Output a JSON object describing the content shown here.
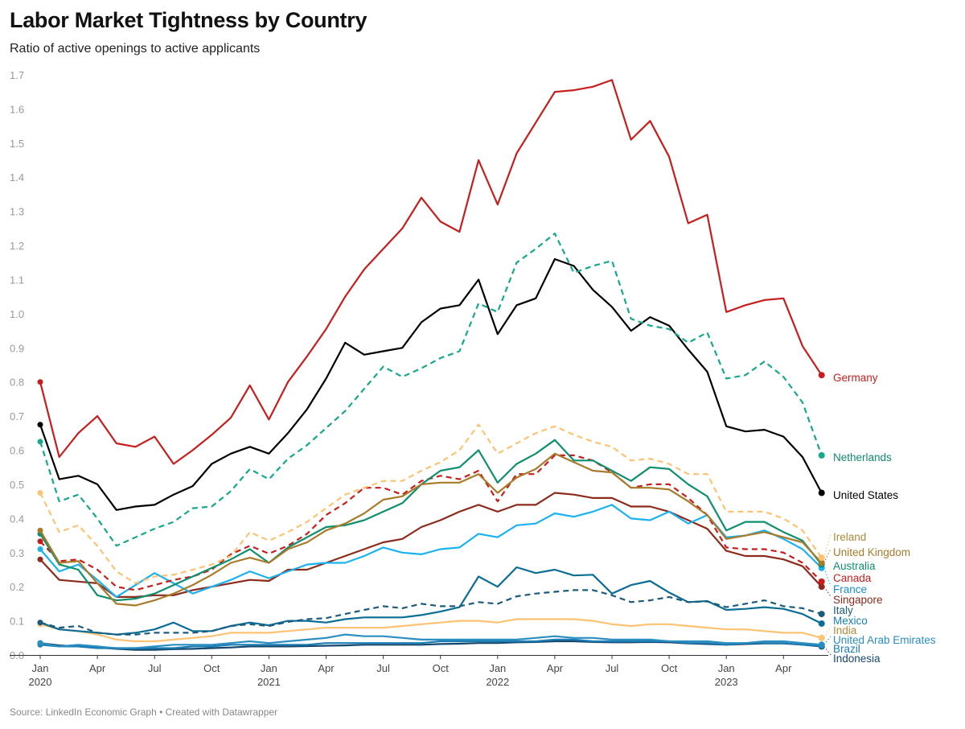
{
  "title": "Labor Market Tightness by Country",
  "subtitle": "Ratio of active openings to active applicants",
  "source": "Source: LinkedIn Economic Graph • Created with Datawrapper",
  "chart_data": {
    "type": "line",
    "title": "Labor Market Tightness by Country",
    "subtitle": "Ratio of active openings to active applicants",
    "xlabel": "",
    "ylabel": "",
    "ylim": [
      0,
      1.7
    ],
    "y_ticks": [
      "0.0",
      "0.1",
      "0.2",
      "0.3",
      "0.4",
      "0.5",
      "0.6",
      "0.7",
      "0.8",
      "0.9",
      "1.0",
      "1.1",
      "1.2",
      "1.3",
      "1.4",
      "1.5",
      "1.6",
      "1.7"
    ],
    "x_start": "2020-01",
    "x_end": "2023-06",
    "x_frequency": "monthly",
    "x_ticks": [
      {
        "label": "Jan",
        "year": "2020",
        "month": "2020-01"
      },
      {
        "label": "Apr",
        "year": "",
        "month": "2020-04"
      },
      {
        "label": "Jul",
        "year": "",
        "month": "2020-07"
      },
      {
        "label": "Oct",
        "year": "",
        "month": "2020-10"
      },
      {
        "label": "Jan",
        "year": "2021",
        "month": "2021-01"
      },
      {
        "label": "Apr",
        "year": "",
        "month": "2021-04"
      },
      {
        "label": "Jul",
        "year": "",
        "month": "2021-07"
      },
      {
        "label": "Oct",
        "year": "",
        "month": "2021-10"
      },
      {
        "label": "Jan",
        "year": "2022",
        "month": "2022-01"
      },
      {
        "label": "Apr",
        "year": "",
        "month": "2022-04"
      },
      {
        "label": "Jul",
        "year": "",
        "month": "2022-07"
      },
      {
        "label": "Oct",
        "year": "",
        "month": "2022-10"
      },
      {
        "label": "Jan",
        "year": "2023",
        "month": "2023-01"
      },
      {
        "label": "Apr",
        "year": "",
        "month": "2023-04"
      }
    ],
    "grid": false,
    "legend": "direct labels at line ends (right)",
    "series": [
      {
        "name": "Germany",
        "color": "#c71e1d",
        "label_color": "#c71e1d",
        "dashed": false,
        "values": [
          0.8,
          0.58,
          0.65,
          0.7,
          0.62,
          0.61,
          0.64,
          0.56,
          0.6,
          0.645,
          0.695,
          0.79,
          0.69,
          0.8,
          0.875,
          0.955,
          1.05,
          1.13,
          1.19,
          1.25,
          1.34,
          1.27,
          1.24,
          1.45,
          1.32,
          1.47,
          1.56,
          1.65,
          1.655,
          1.665,
          1.685,
          1.51,
          1.565,
          1.46,
          1.265,
          1.29,
          1.005,
          1.025,
          1.04,
          1.045,
          0.905,
          0.82
        ]
      },
      {
        "name": "Netherlands",
        "color": "#15a88a",
        "label_color": "#0f8a70",
        "dashed": true,
        "values": [
          0.625,
          0.45,
          0.47,
          0.4,
          0.32,
          0.345,
          0.37,
          0.39,
          0.43,
          0.435,
          0.48,
          0.545,
          0.515,
          0.575,
          0.615,
          0.665,
          0.715,
          0.78,
          0.845,
          0.815,
          0.84,
          0.87,
          0.89,
          1.03,
          1.005,
          1.15,
          1.19,
          1.235,
          1.12,
          1.14,
          1.155,
          0.985,
          0.965,
          0.955,
          0.915,
          0.945,
          0.81,
          0.82,
          0.86,
          0.815,
          0.74,
          0.585
        ]
      },
      {
        "name": "United States",
        "color": "#000000",
        "label_color": "#000000",
        "dashed": false,
        "values": [
          0.675,
          0.515,
          0.525,
          0.5,
          0.425,
          0.435,
          0.44,
          0.47,
          0.495,
          0.56,
          0.59,
          0.61,
          0.59,
          0.65,
          0.72,
          0.81,
          0.915,
          0.88,
          0.89,
          0.9,
          0.975,
          1.015,
          1.025,
          1.1,
          0.94,
          1.025,
          1.045,
          1.16,
          1.14,
          1.07,
          1.02,
          0.95,
          0.99,
          0.965,
          0.895,
          0.83,
          0.67,
          0.655,
          0.66,
          0.64,
          0.58,
          0.475
        ]
      },
      {
        "name": "Ireland",
        "color": "#fdc372",
        "label_color": "#b08a3a",
        "dashed": true,
        "values": [
          0.475,
          0.36,
          0.38,
          0.32,
          0.245,
          0.21,
          0.23,
          0.235,
          0.25,
          0.265,
          0.29,
          0.36,
          0.335,
          0.36,
          0.39,
          0.43,
          0.47,
          0.49,
          0.51,
          0.51,
          0.54,
          0.565,
          0.6,
          0.675,
          0.59,
          0.62,
          0.65,
          0.67,
          0.645,
          0.625,
          0.61,
          0.57,
          0.575,
          0.56,
          0.53,
          0.53,
          0.42,
          0.42,
          0.42,
          0.4,
          0.365,
          0.285
        ]
      },
      {
        "name": "United Kingdom",
        "color": "#a87a2a",
        "label_color": "#a87a2a",
        "dashed": false,
        "values": [
          0.365,
          0.27,
          0.275,
          0.21,
          0.15,
          0.145,
          0.16,
          0.18,
          0.205,
          0.235,
          0.27,
          0.285,
          0.27,
          0.31,
          0.33,
          0.365,
          0.385,
          0.415,
          0.455,
          0.465,
          0.5,
          0.505,
          0.505,
          0.53,
          0.475,
          0.52,
          0.545,
          0.59,
          0.565,
          0.54,
          0.535,
          0.49,
          0.49,
          0.485,
          0.45,
          0.41,
          0.34,
          0.35,
          0.36,
          0.345,
          0.33,
          0.27
        ]
      },
      {
        "name": "Australia",
        "color": "#0f8f6e",
        "label_color": "#0f8f6e",
        "dashed": false,
        "values": [
          0.355,
          0.265,
          0.25,
          0.175,
          0.16,
          0.165,
          0.18,
          0.205,
          0.23,
          0.255,
          0.28,
          0.31,
          0.27,
          0.315,
          0.345,
          0.375,
          0.38,
          0.395,
          0.42,
          0.445,
          0.5,
          0.54,
          0.55,
          0.6,
          0.505,
          0.56,
          0.59,
          0.63,
          0.57,
          0.57,
          0.54,
          0.51,
          0.55,
          0.545,
          0.5,
          0.465,
          0.365,
          0.39,
          0.39,
          0.36,
          0.335,
          0.265
        ]
      },
      {
        "name": "Canada",
        "color": "#c71e1d",
        "label_color": "#c71e1d",
        "dashed": true,
        "values": [
          0.333,
          0.275,
          0.28,
          0.25,
          0.2,
          0.19,
          0.205,
          0.22,
          0.23,
          0.25,
          0.295,
          0.32,
          0.297,
          0.32,
          0.355,
          0.41,
          0.445,
          0.49,
          0.49,
          0.47,
          0.51,
          0.525,
          0.515,
          0.54,
          0.45,
          0.53,
          0.53,
          0.585,
          0.585,
          0.57,
          0.535,
          0.49,
          0.5,
          0.5,
          0.46,
          0.41,
          0.315,
          0.31,
          0.31,
          0.3,
          0.27,
          0.215
        ]
      },
      {
        "name": "France",
        "color": "#1ab2f0",
        "label_color": "#1a8fd0",
        "dashed": false,
        "values": [
          0.31,
          0.245,
          0.265,
          0.22,
          0.17,
          0.205,
          0.24,
          0.21,
          0.18,
          0.2,
          0.22,
          0.245,
          0.225,
          0.245,
          0.265,
          0.27,
          0.27,
          0.29,
          0.315,
          0.3,
          0.295,
          0.31,
          0.315,
          0.355,
          0.345,
          0.38,
          0.385,
          0.415,
          0.405,
          0.42,
          0.44,
          0.4,
          0.395,
          0.42,
          0.385,
          0.41,
          0.345,
          0.35,
          0.365,
          0.34,
          0.31,
          0.255
        ]
      },
      {
        "name": "Singapore",
        "color": "#8c2a1c",
        "label_color": "#8c2a1c",
        "dashed": false,
        "values": [
          0.28,
          0.22,
          0.215,
          0.21,
          0.17,
          0.17,
          0.175,
          0.175,
          0.19,
          0.2,
          0.21,
          0.22,
          0.217,
          0.25,
          0.25,
          0.27,
          0.29,
          0.31,
          0.33,
          0.34,
          0.375,
          0.395,
          0.42,
          0.44,
          0.42,
          0.44,
          0.44,
          0.475,
          0.47,
          0.46,
          0.46,
          0.435,
          0.435,
          0.42,
          0.395,
          0.37,
          0.305,
          0.29,
          0.29,
          0.28,
          0.26,
          0.2
        ]
      },
      {
        "name": "Italy",
        "color": "#1d5b7a",
        "label_color": "#1d5b7a",
        "dashed": true,
        "values": [
          0.095,
          0.08,
          0.085,
          0.065,
          0.06,
          0.06,
          0.065,
          0.065,
          0.065,
          0.07,
          0.085,
          0.09,
          0.085,
          0.097,
          0.105,
          0.108,
          0.12,
          0.132,
          0.143,
          0.137,
          0.15,
          0.143,
          0.143,
          0.155,
          0.15,
          0.172,
          0.18,
          0.185,
          0.19,
          0.19,
          0.175,
          0.155,
          0.16,
          0.17,
          0.155,
          0.157,
          0.14,
          0.15,
          0.16,
          0.143,
          0.137,
          0.12
        ]
      },
      {
        "name": "Mexico",
        "color": "#0b6d96",
        "label_color": "#1a7fb0",
        "dashed": false,
        "values": [
          0.095,
          0.075,
          0.07,
          0.065,
          0.06,
          0.065,
          0.075,
          0.095,
          0.07,
          0.07,
          0.085,
          0.095,
          0.087,
          0.1,
          0.1,
          0.095,
          0.105,
          0.11,
          0.11,
          0.11,
          0.117,
          0.127,
          0.14,
          0.23,
          0.2,
          0.257,
          0.24,
          0.25,
          0.233,
          0.235,
          0.18,
          0.205,
          0.217,
          0.183,
          0.155,
          0.158,
          0.132,
          0.135,
          0.14,
          0.135,
          0.12,
          0.092
        ]
      },
      {
        "name": "India",
        "color": "#fdc372",
        "label_color": "#b08a3a",
        "dashed": false,
        "values": [
          0.09,
          0.075,
          0.07,
          0.06,
          0.045,
          0.04,
          0.04,
          0.045,
          0.05,
          0.055,
          0.065,
          0.065,
          0.065,
          0.07,
          0.075,
          0.08,
          0.08,
          0.08,
          0.08,
          0.085,
          0.09,
          0.095,
          0.1,
          0.1,
          0.095,
          0.105,
          0.105,
          0.105,
          0.105,
          0.1,
          0.09,
          0.085,
          0.09,
          0.09,
          0.085,
          0.08,
          0.075,
          0.075,
          0.07,
          0.065,
          0.065,
          0.05
        ]
      },
      {
        "name": "United Arab Emirates",
        "color": "#2a8ec0",
        "label_color": "#2a8ec0",
        "dashed": false,
        "values": [
          0.035,
          0.025,
          0.03,
          0.025,
          0.02,
          0.02,
          0.025,
          0.03,
          0.03,
          0.03,
          0.035,
          0.04,
          0.035,
          0.04,
          0.045,
          0.05,
          0.06,
          0.055,
          0.055,
          0.05,
          0.045,
          0.045,
          0.045,
          0.045,
          0.045,
          0.045,
          0.05,
          0.055,
          0.05,
          0.05,
          0.045,
          0.045,
          0.045,
          0.04,
          0.04,
          0.04,
          0.035,
          0.035,
          0.04,
          0.04,
          0.035,
          0.03
        ]
      },
      {
        "name": "Brazil",
        "color": "#1b7db4",
        "label_color": "#1b7db4",
        "dashed": false,
        "values": [
          0.03,
          0.025,
          0.025,
          0.02,
          0.02,
          0.02,
          0.02,
          0.02,
          0.025,
          0.025,
          0.03,
          0.03,
          0.03,
          0.03,
          0.03,
          0.035,
          0.035,
          0.035,
          0.035,
          0.035,
          0.035,
          0.04,
          0.04,
          0.04,
          0.04,
          0.04,
          0.04,
          0.045,
          0.045,
          0.04,
          0.04,
          0.04,
          0.04,
          0.04,
          0.035,
          0.035,
          0.03,
          0.035,
          0.035,
          0.035,
          0.03,
          0.027
        ]
      },
      {
        "name": "Indonesia",
        "color": "#15486e",
        "label_color": "#15486e",
        "dashed": false,
        "values": [
          0.035,
          0.028,
          0.025,
          0.022,
          0.018,
          0.015,
          0.015,
          0.017,
          0.018,
          0.02,
          0.022,
          0.025,
          0.025,
          0.025,
          0.026,
          0.027,
          0.028,
          0.03,
          0.03,
          0.03,
          0.03,
          0.032,
          0.033,
          0.035,
          0.035,
          0.037,
          0.038,
          0.04,
          0.04,
          0.038,
          0.037,
          0.037,
          0.038,
          0.037,
          0.034,
          0.032,
          0.03,
          0.032,
          0.034,
          0.034,
          0.03,
          0.025
        ]
      }
    ]
  }
}
